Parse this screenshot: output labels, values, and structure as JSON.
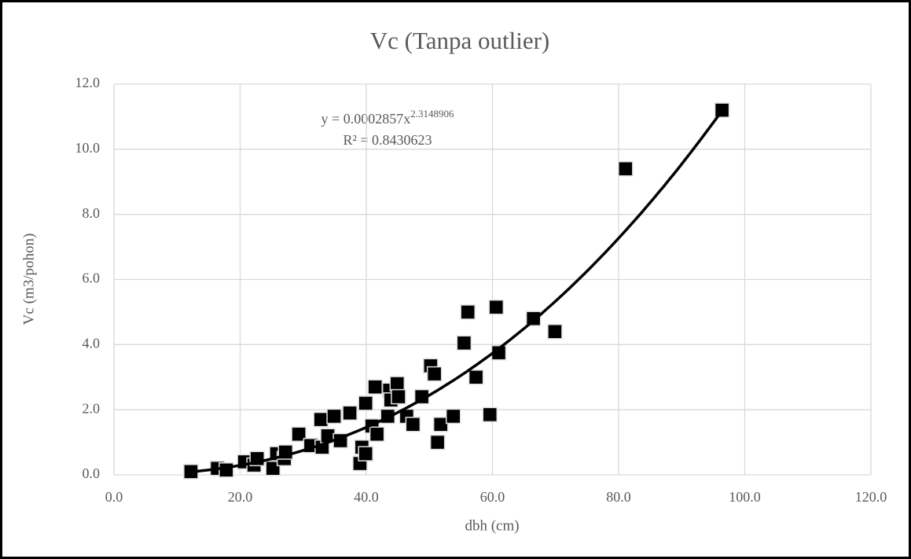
{
  "chart_data": {
    "type": "scatter",
    "title": "Vc (Tanpa outlier)",
    "x_label": "dbh (cm)",
    "y_label": "Vc (m3/pohon)",
    "xlim": [
      0,
      120
    ],
    "ylim": [
      0,
      12
    ],
    "xticks": [
      {
        "value": 0,
        "label": "0.0"
      },
      {
        "value": 20,
        "label": "20.0"
      },
      {
        "value": 40,
        "label": "40.0"
      },
      {
        "value": 60,
        "label": "60.0"
      },
      {
        "value": 80,
        "label": "80.0"
      },
      {
        "value": 100,
        "label": "100.0"
      },
      {
        "value": 120,
        "label": "120.0"
      }
    ],
    "yticks": [
      {
        "value": 0,
        "label": "0.0"
      },
      {
        "value": 2,
        "label": "2.0"
      },
      {
        "value": 4,
        "label": "4.0"
      },
      {
        "value": 6,
        "label": "6.0"
      },
      {
        "value": 8,
        "label": "8.0"
      },
      {
        "value": 10,
        "label": "10.0"
      },
      {
        "value": 12,
        "label": "12.0"
      }
    ],
    "grid": true,
    "color": "#000000",
    "x": [
      12.2,
      16.4,
      17.8,
      20.7,
      22.2,
      22.7,
      25.2,
      25.8,
      27.0,
      27.2,
      29.3,
      31.2,
      32.8,
      33.0,
      33.9,
      34.9,
      35.9,
      37.4,
      39.0,
      39.3,
      39.9,
      39.9,
      40.9,
      41.4,
      41.7,
      43.4,
      43.7,
      43.9,
      44.9,
      45.1,
      46.4,
      47.4,
      48.8,
      50.2,
      50.8,
      51.3,
      51.8,
      53.8,
      55.5,
      56.1,
      57.4,
      59.6,
      60.6,
      61.0,
      66.5,
      69.9,
      81.1,
      96.4
    ],
    "values": [
      0.1,
      0.2,
      0.15,
      0.4,
      0.3,
      0.5,
      0.2,
      0.65,
      0.5,
      0.7,
      1.25,
      0.9,
      1.7,
      0.85,
      1.2,
      1.8,
      1.05,
      1.9,
      0.35,
      0.85,
      0.65,
      2.2,
      1.5,
      2.7,
      1.25,
      1.8,
      2.6,
      2.3,
      2.8,
      2.4,
      1.8,
      1.55,
      2.4,
      3.35,
      3.1,
      1.0,
      1.55,
      1.8,
      4.05,
      5.0,
      3.0,
      1.85,
      5.15,
      3.75,
      4.8,
      4.4,
      9.4,
      11.2
    ],
    "trendline": {
      "equation": "y = 0.0002857x",
      "exponent": "2.3148906",
      "r_squared": "R² = 0.8430623"
    }
  }
}
